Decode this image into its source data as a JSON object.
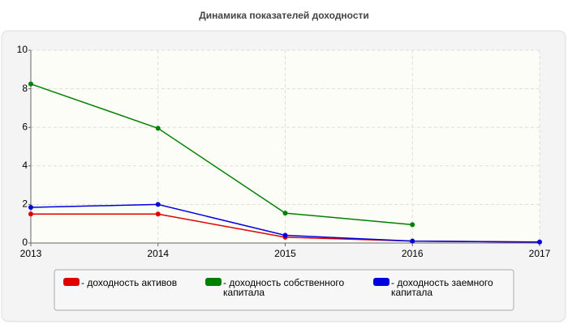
{
  "chart_data": {
    "type": "line",
    "title": "Динамика показателей доходности",
    "x": [
      2013,
      2014,
      2015,
      2016,
      2017
    ],
    "series": [
      {
        "name": "- доходность активов",
        "color": "#e00000",
        "values": [
          1.5,
          1.5,
          0.3,
          0.1,
          0.05
        ]
      },
      {
        "name": "- доходность собственного капитала",
        "color": "#008000",
        "values": [
          8.25,
          5.95,
          1.55,
          0.95,
          null
        ]
      },
      {
        "name": "- доходность заемного капитала",
        "color": "#0000e0",
        "values": [
          1.85,
          2.0,
          0.4,
          0.1,
          0.05
        ]
      }
    ],
    "xlim": [
      2013,
      2017
    ],
    "xticks": [
      2013,
      2014,
      2015,
      2016,
      2017
    ],
    "ylim": [
      0,
      10
    ],
    "yticks": [
      0,
      2,
      4,
      6,
      8,
      10
    ],
    "grid": true
  }
}
